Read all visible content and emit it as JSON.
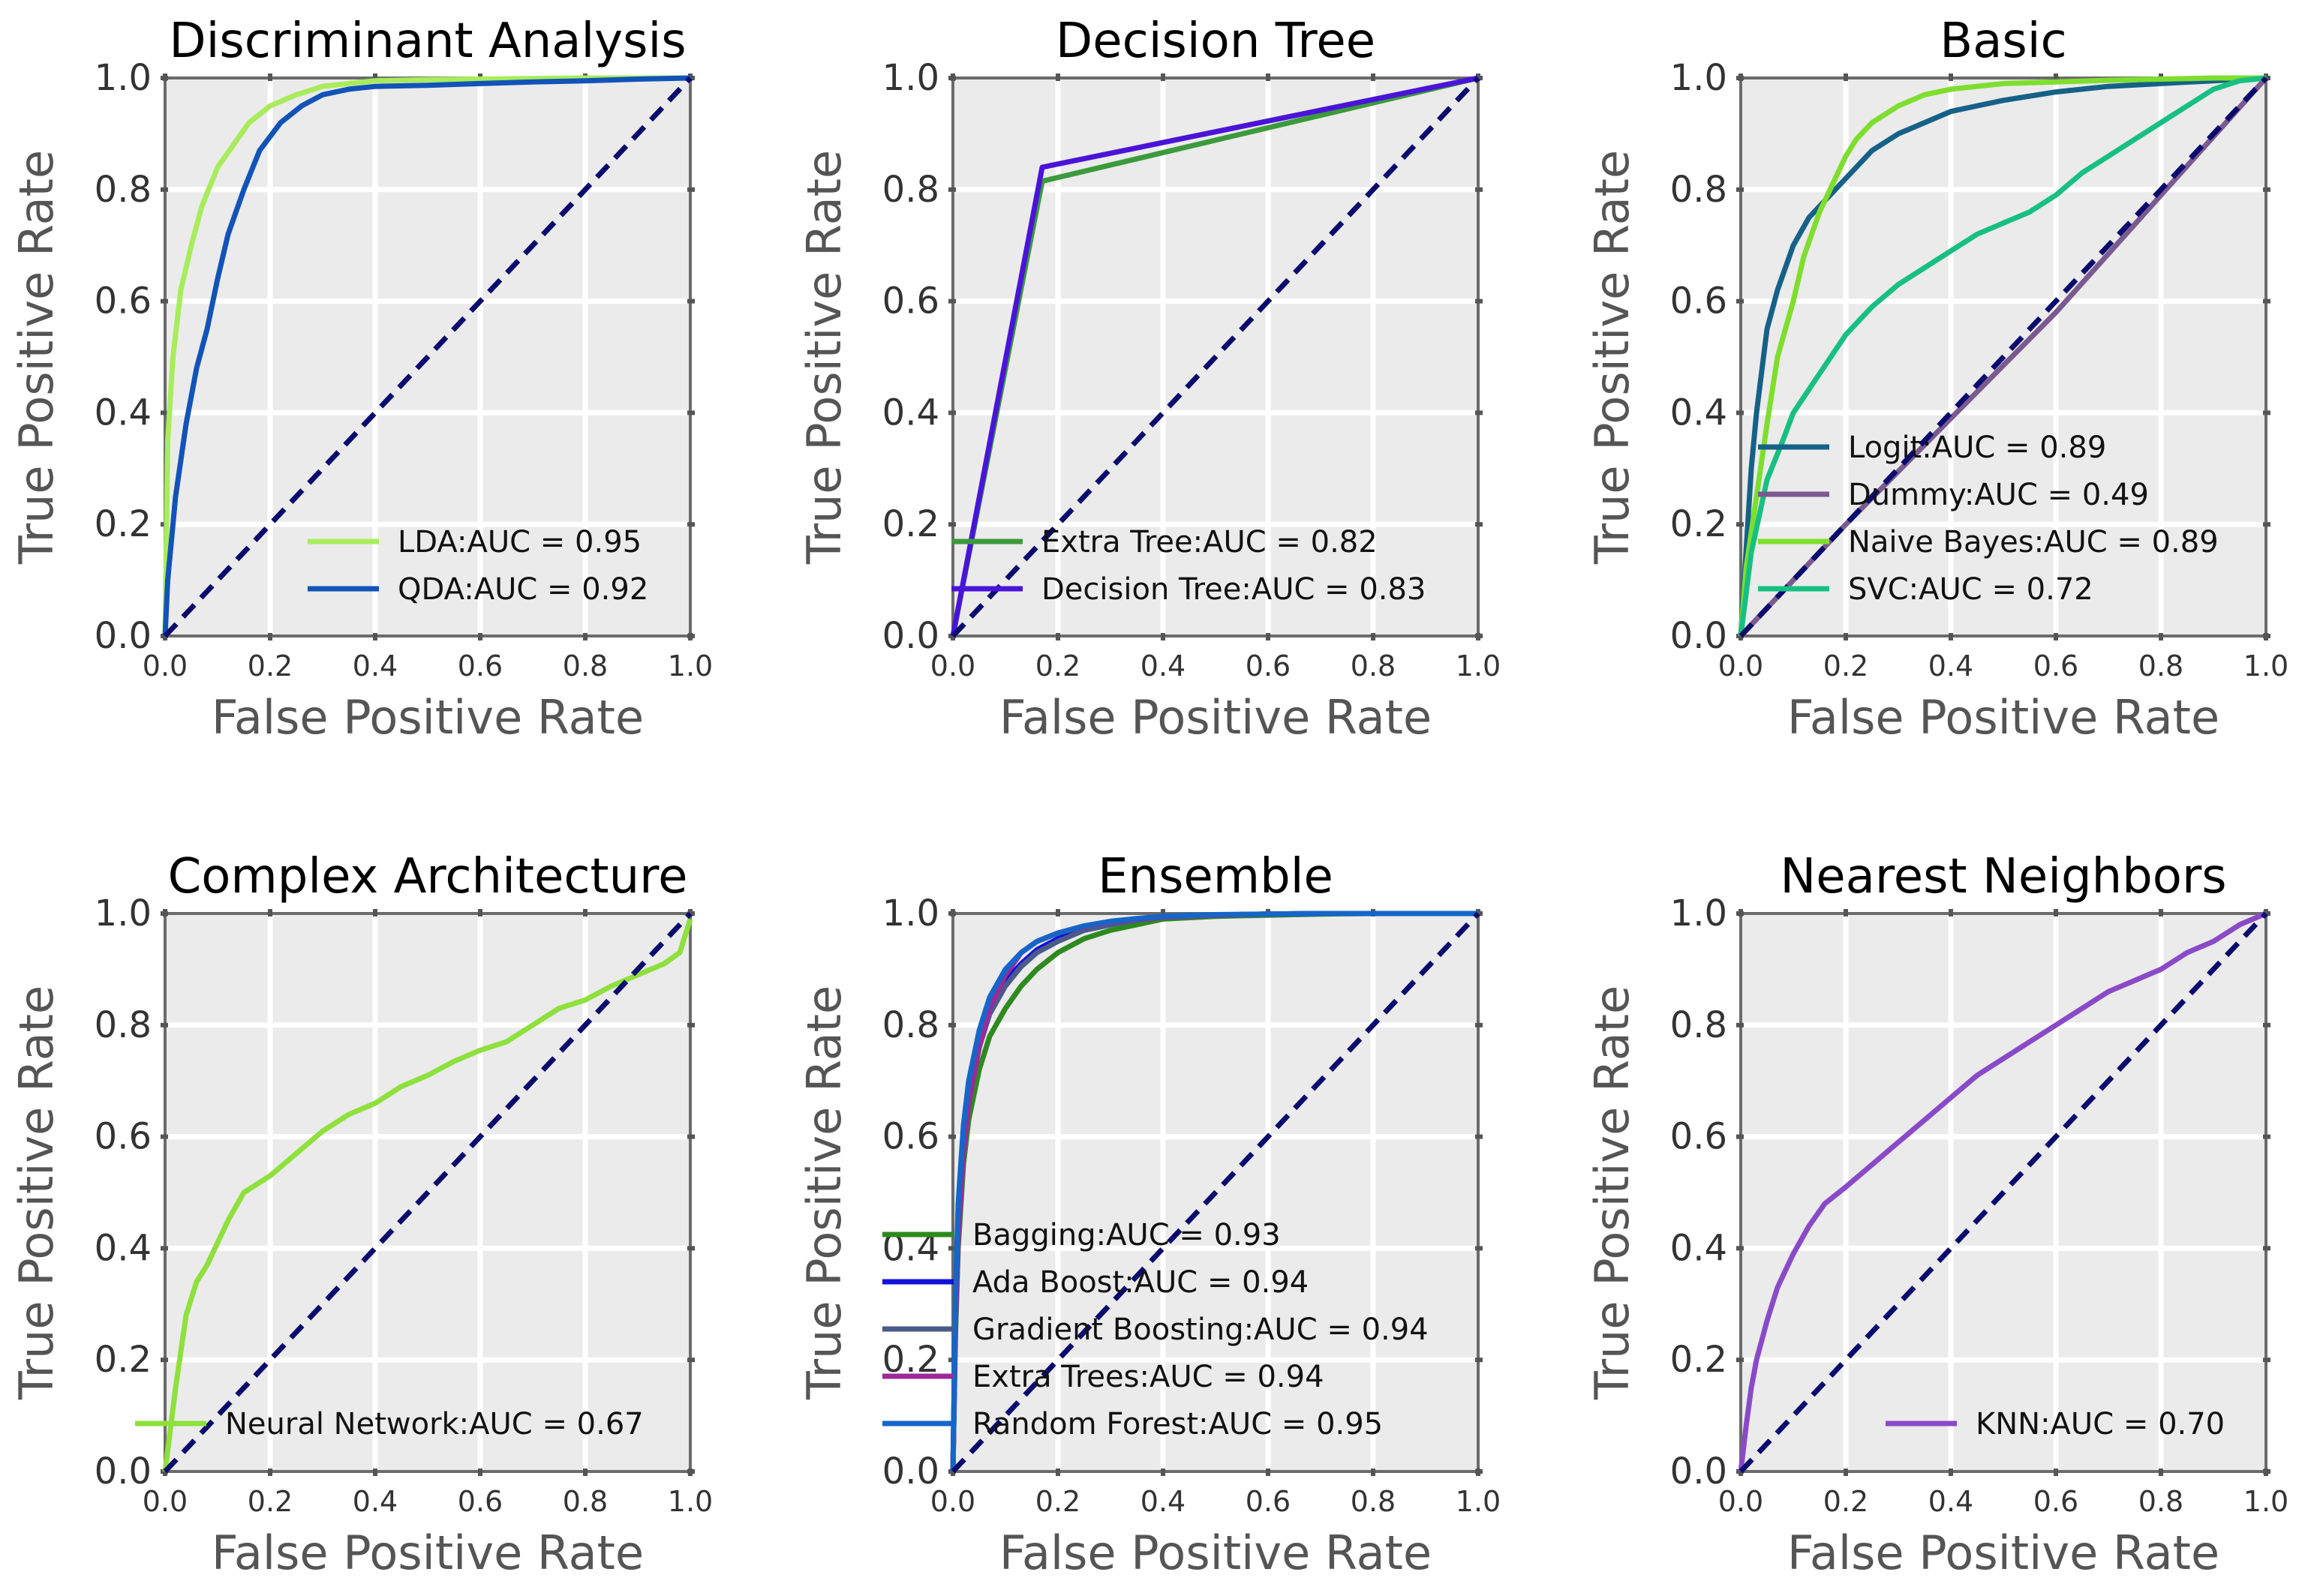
{
  "colors": {
    "panel_background": "#ebebeb",
    "grid": "#ffffff",
    "frame": "#6b6b6b",
    "diagonal": "#0b0b6e"
  },
  "chart_data": [
    {
      "type": "line",
      "title": "Discriminant Analysis",
      "xlabel": "False Positive Rate",
      "ylabel": "True Positive Rate",
      "xlim": [
        0,
        1
      ],
      "ylim": [
        0,
        1
      ],
      "xticks": [
        "0.0",
        "0.2",
        "0.4",
        "0.6",
        "0.8",
        "1.0"
      ],
      "yticks": [
        "0.0",
        "0.2",
        "0.4",
        "0.6",
        "0.8",
        "1.0"
      ],
      "grid": true,
      "legend_position": "lower-right",
      "reference_line": {
        "x": [
          0,
          1
        ],
        "y": [
          0,
          1
        ],
        "style": "dashed"
      },
      "series": [
        {
          "name": "LDA:AUC = 0.95",
          "color": "#a8ec5c",
          "x": [
            0,
            0.005,
            0.015,
            0.03,
            0.05,
            0.07,
            0.1,
            0.13,
            0.16,
            0.2,
            0.25,
            0.3,
            0.35,
            0.4,
            0.5,
            0.6,
            0.7,
            0.8,
            0.9,
            1.0
          ],
          "y": [
            0,
            0.35,
            0.5,
            0.62,
            0.7,
            0.77,
            0.84,
            0.88,
            0.92,
            0.95,
            0.97,
            0.985,
            0.99,
            0.995,
            0.997,
            0.998,
            0.999,
            1.0,
            1.0,
            1.0
          ]
        },
        {
          "name": "QDA:AUC = 0.92",
          "color": "#1253b8",
          "x": [
            0,
            0.005,
            0.02,
            0.04,
            0.06,
            0.08,
            0.1,
            0.12,
            0.15,
            0.18,
            0.22,
            0.26,
            0.3,
            0.35,
            0.4,
            0.5,
            0.6,
            0.7,
            0.8,
            0.9,
            1.0
          ],
          "y": [
            0,
            0.1,
            0.25,
            0.38,
            0.48,
            0.55,
            0.64,
            0.72,
            0.8,
            0.87,
            0.92,
            0.95,
            0.97,
            0.98,
            0.985,
            0.987,
            0.99,
            0.993,
            0.995,
            0.998,
            1.0
          ]
        }
      ]
    },
    {
      "type": "line",
      "title": "Decision Tree",
      "xlabel": "False Positive Rate",
      "ylabel": "True Positive Rate",
      "xlim": [
        0,
        1
      ],
      "ylim": [
        0,
        1
      ],
      "xticks": [
        "0.0",
        "0.2",
        "0.4",
        "0.6",
        "0.8",
        "1.0"
      ],
      "yticks": [
        "0.0",
        "0.2",
        "0.4",
        "0.6",
        "0.8",
        "1.0"
      ],
      "grid": true,
      "legend_position": "lower-left",
      "reference_line": {
        "x": [
          0,
          1
        ],
        "y": [
          0,
          1
        ],
        "style": "dashed"
      },
      "series": [
        {
          "name": "Extra Tree:AUC = 0.82",
          "color": "#3c9a3c",
          "x": [
            0,
            0.17,
            1.0
          ],
          "y": [
            0,
            0.815,
            1.0
          ]
        },
        {
          "name": "Decision Tree:AUC = 0.83",
          "color": "#4a14d8",
          "x": [
            0,
            0.17,
            1.0
          ],
          "y": [
            0,
            0.84,
            1.0
          ]
        }
      ]
    },
    {
      "type": "line",
      "title": "Basic",
      "xlabel": "False Positive Rate",
      "ylabel": "True Positive Rate",
      "xlim": [
        0,
        1
      ],
      "ylim": [
        0,
        1
      ],
      "xticks": [
        "0.0",
        "0.2",
        "0.4",
        "0.6",
        "0.8",
        "1.0"
      ],
      "yticks": [
        "0.0",
        "0.2",
        "0.4",
        "0.6",
        "0.8",
        "1.0"
      ],
      "grid": true,
      "legend_position": "center",
      "reference_line": {
        "x": [
          0,
          1
        ],
        "y": [
          0,
          1
        ],
        "style": "dashed"
      },
      "series": [
        {
          "name": "Logit:AUC = 0.89",
          "color": "#156187",
          "x": [
            0,
            0.01,
            0.02,
            0.03,
            0.05,
            0.07,
            0.1,
            0.13,
            0.17,
            0.2,
            0.25,
            0.3,
            0.35,
            0.4,
            0.5,
            0.6,
            0.7,
            0.8,
            0.9,
            1.0
          ],
          "y": [
            0,
            0.15,
            0.3,
            0.4,
            0.55,
            0.62,
            0.7,
            0.75,
            0.79,
            0.82,
            0.87,
            0.9,
            0.92,
            0.94,
            0.96,
            0.975,
            0.985,
            0.99,
            0.995,
            1.0
          ]
        },
        {
          "name": "Dummy:AUC = 0.49",
          "color": "#7a5a90",
          "x": [
            0,
            0.2,
            0.4,
            0.6,
            0.8,
            1.0
          ],
          "y": [
            0,
            0.2,
            0.39,
            0.58,
            0.79,
            1.0
          ]
        },
        {
          "name": "Naive Bayes:AUC = 0.89",
          "color": "#7ede2e",
          "x": [
            0,
            0.01,
            0.03,
            0.05,
            0.07,
            0.1,
            0.12,
            0.15,
            0.18,
            0.2,
            0.22,
            0.25,
            0.3,
            0.35,
            0.4,
            0.5,
            0.6,
            0.7,
            0.8,
            0.9,
            1.0
          ],
          "y": [
            0,
            0.12,
            0.25,
            0.38,
            0.5,
            0.6,
            0.68,
            0.76,
            0.82,
            0.86,
            0.89,
            0.92,
            0.95,
            0.97,
            0.98,
            0.99,
            0.993,
            0.996,
            0.998,
            1.0,
            1.0
          ]
        },
        {
          "name": "SVC:AUC = 0.72",
          "color": "#17c082",
          "x": [
            0,
            0.02,
            0.05,
            0.08,
            0.1,
            0.15,
            0.2,
            0.25,
            0.3,
            0.35,
            0.4,
            0.45,
            0.5,
            0.55,
            0.6,
            0.65,
            0.7,
            0.75,
            0.8,
            0.85,
            0.9,
            0.95,
            1.0
          ],
          "y": [
            0,
            0.15,
            0.28,
            0.35,
            0.4,
            0.47,
            0.54,
            0.59,
            0.63,
            0.66,
            0.69,
            0.72,
            0.74,
            0.76,
            0.79,
            0.83,
            0.86,
            0.89,
            0.92,
            0.95,
            0.98,
            0.995,
            1.0
          ]
        }
      ]
    },
    {
      "type": "line",
      "title": "Complex Architecture",
      "xlabel": "False Positive Rate",
      "ylabel": "True Positive Rate",
      "xlim": [
        0,
        1
      ],
      "ylim": [
        0,
        1
      ],
      "xticks": [
        "0.0",
        "0.2",
        "0.4",
        "0.6",
        "0.8",
        "1.0"
      ],
      "yticks": [
        "0.0",
        "0.2",
        "0.4",
        "0.6",
        "0.8",
        "1.0"
      ],
      "grid": true,
      "legend_position": "lower-right",
      "reference_line": {
        "x": [
          0,
          1
        ],
        "y": [
          0,
          1
        ],
        "style": "dashed"
      },
      "series": [
        {
          "name": "Neural Network:AUC = 0.67",
          "color": "#8ee03c",
          "x": [
            0,
            0.02,
            0.04,
            0.06,
            0.08,
            0.1,
            0.12,
            0.15,
            0.2,
            0.25,
            0.3,
            0.35,
            0.4,
            0.45,
            0.5,
            0.55,
            0.6,
            0.65,
            0.7,
            0.75,
            0.8,
            0.85,
            0.9,
            0.95,
            0.98,
            1.0
          ],
          "y": [
            0,
            0.15,
            0.28,
            0.34,
            0.37,
            0.41,
            0.45,
            0.5,
            0.53,
            0.57,
            0.61,
            0.64,
            0.66,
            0.69,
            0.71,
            0.735,
            0.755,
            0.77,
            0.8,
            0.83,
            0.845,
            0.87,
            0.89,
            0.91,
            0.93,
            0.99
          ]
        }
      ]
    },
    {
      "type": "line",
      "title": "Ensemble",
      "xlabel": "False Positive Rate",
      "ylabel": "True Positive Rate",
      "xlim": [
        0,
        1
      ],
      "ylim": [
        0,
        1
      ],
      "xticks": [
        "0.0",
        "0.2",
        "0.4",
        "0.6",
        "0.8",
        "1.0"
      ],
      "yticks": [
        "0.0",
        "0.2",
        "0.4",
        "0.6",
        "0.8",
        "1.0"
      ],
      "grid": true,
      "legend_position": "lower-left",
      "reference_line": {
        "x": [
          0,
          1
        ],
        "y": [
          0,
          1
        ],
        "style": "dashed"
      },
      "series": [
        {
          "name": "Bagging:AUC = 0.93",
          "color": "#2d8a1e",
          "x": [
            0,
            0.005,
            0.01,
            0.02,
            0.03,
            0.05,
            0.07,
            0.1,
            0.13,
            0.16,
            0.2,
            0.25,
            0.3,
            0.35,
            0.4,
            0.5,
            0.6,
            0.7,
            0.8,
            0.9,
            1.0
          ],
          "y": [
            0,
            0.25,
            0.4,
            0.55,
            0.63,
            0.72,
            0.78,
            0.83,
            0.87,
            0.9,
            0.93,
            0.955,
            0.97,
            0.98,
            0.99,
            0.995,
            0.997,
            0.999,
            1.0,
            1.0,
            1.0
          ]
        },
        {
          "name": "Ada Boost:AUC = 0.94",
          "color": "#1212d8",
          "x": [
            0,
            0.005,
            0.01,
            0.02,
            0.03,
            0.05,
            0.07,
            0.1,
            0.13,
            0.16,
            0.2,
            0.25,
            0.3,
            0.35,
            0.4,
            0.5,
            0.6,
            0.7,
            0.8,
            0.9,
            1.0
          ],
          "y": [
            0,
            0.3,
            0.45,
            0.6,
            0.68,
            0.77,
            0.83,
            0.88,
            0.91,
            0.935,
            0.955,
            0.97,
            0.98,
            0.99,
            0.994,
            0.997,
            0.999,
            1.0,
            1.0,
            1.0,
            1.0
          ]
        },
        {
          "name": "Gradient Boosting:AUC = 0.94",
          "color": "#4a5a8a",
          "x": [
            0,
            0.005,
            0.01,
            0.02,
            0.03,
            0.05,
            0.07,
            0.1,
            0.13,
            0.16,
            0.2,
            0.25,
            0.3,
            0.35,
            0.4,
            0.5,
            0.6,
            0.7,
            0.8,
            0.9,
            1.0
          ],
          "y": [
            0,
            0.28,
            0.44,
            0.58,
            0.67,
            0.76,
            0.82,
            0.87,
            0.905,
            0.93,
            0.95,
            0.97,
            0.98,
            0.988,
            0.993,
            0.997,
            0.999,
            1.0,
            1.0,
            1.0,
            1.0
          ]
        },
        {
          "name": "Extra Trees:AUC = 0.94",
          "color": "#9a2a9a",
          "x": [
            0,
            0.005,
            0.01,
            0.02,
            0.03,
            0.05,
            0.07,
            0.1,
            0.13,
            0.16,
            0.2,
            0.25,
            0.3,
            0.35,
            0.4,
            0.5,
            0.6,
            0.7,
            0.8,
            0.9,
            1.0
          ],
          "y": [
            0,
            0.27,
            0.42,
            0.57,
            0.66,
            0.76,
            0.83,
            0.89,
            0.93,
            0.95,
            0.965,
            0.977,
            0.985,
            0.99,
            0.994,
            0.997,
            0.999,
            1.0,
            1.0,
            1.0,
            1.0
          ]
        },
        {
          "name": "Random Forest:AUC = 0.95",
          "color": "#1566c8",
          "x": [
            0,
            0.005,
            0.01,
            0.02,
            0.03,
            0.05,
            0.07,
            0.1,
            0.13,
            0.16,
            0.2,
            0.25,
            0.3,
            0.35,
            0.4,
            0.5,
            0.6,
            0.7,
            0.8,
            0.9,
            1.0
          ],
          "y": [
            0,
            0.32,
            0.48,
            0.62,
            0.7,
            0.79,
            0.85,
            0.9,
            0.93,
            0.95,
            0.965,
            0.978,
            0.986,
            0.991,
            0.995,
            0.998,
            0.999,
            1.0,
            1.0,
            1.0,
            1.0
          ]
        }
      ]
    },
    {
      "type": "line",
      "title": "Nearest Neighbors",
      "xlabel": "False Positive Rate",
      "ylabel": "True Positive Rate",
      "xlim": [
        0,
        1
      ],
      "ylim": [
        0,
        1
      ],
      "xticks": [
        "0.0",
        "0.2",
        "0.4",
        "0.6",
        "0.8",
        "1.0"
      ],
      "yticks": [
        "0.0",
        "0.2",
        "0.4",
        "0.6",
        "0.8",
        "1.0"
      ],
      "grid": true,
      "legend_position": "lower-right",
      "reference_line": {
        "x": [
          0,
          1
        ],
        "y": [
          0,
          1
        ],
        "style": "dashed"
      },
      "series": [
        {
          "name": "KNN:AUC = 0.70",
          "color": "#8a4ac8",
          "x": [
            0,
            0.01,
            0.02,
            0.03,
            0.05,
            0.07,
            0.1,
            0.13,
            0.16,
            0.2,
            0.25,
            0.3,
            0.35,
            0.4,
            0.45,
            0.5,
            0.55,
            0.6,
            0.65,
            0.7,
            0.75,
            0.8,
            0.85,
            0.9,
            0.95,
            1.0
          ],
          "y": [
            0,
            0.08,
            0.15,
            0.2,
            0.27,
            0.33,
            0.39,
            0.44,
            0.48,
            0.51,
            0.55,
            0.59,
            0.63,
            0.67,
            0.71,
            0.74,
            0.77,
            0.8,
            0.83,
            0.86,
            0.88,
            0.9,
            0.93,
            0.95,
            0.98,
            1.0
          ]
        }
      ]
    }
  ]
}
